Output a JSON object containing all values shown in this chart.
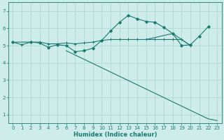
{
  "title": "",
  "xlabel": "Humidex (Indice chaleur)",
  "background_color": "#ceecea",
  "grid_color": "#b0d8d4",
  "line_color": "#1a7a6e",
  "xlim": [
    -0.5,
    23.5
  ],
  "ylim": [
    0.5,
    7.5
  ],
  "yticks": [
    1,
    2,
    3,
    4,
    5,
    6,
    7
  ],
  "xticks": [
    0,
    1,
    2,
    3,
    4,
    5,
    6,
    7,
    8,
    9,
    10,
    11,
    12,
    13,
    14,
    15,
    16,
    17,
    18,
    19,
    20,
    21,
    22,
    23
  ],
  "lines": [
    {
      "x": [
        0,
        1,
        2,
        3,
        4,
        5,
        6,
        7,
        8,
        9,
        10,
        11,
        12,
        13,
        14,
        15,
        16,
        17,
        18,
        19,
        20
      ],
      "y": [
        5.2,
        5.05,
        5.2,
        5.2,
        5.1,
        5.1,
        5.15,
        5.1,
        5.15,
        5.2,
        5.3,
        5.35,
        5.35,
        5.35,
        5.35,
        5.35,
        5.35,
        5.35,
        5.35,
        5.35,
        5.0
      ],
      "marker": true,
      "lw": 0.8
    },
    {
      "x": [
        0,
        2,
        3,
        4,
        5,
        6,
        7,
        8,
        9,
        10,
        11,
        12,
        13,
        14,
        15,
        16,
        17,
        18,
        19,
        20,
        21,
        22
      ],
      "y": [
        5.2,
        5.2,
        5.15,
        4.9,
        5.05,
        5.0,
        4.65,
        4.7,
        4.85,
        5.3,
        5.85,
        6.35,
        6.75,
        6.55,
        6.4,
        6.35,
        6.05,
        5.7,
        5.0,
        5.05,
        5.55,
        6.1
      ],
      "marker": true,
      "lw": 0.8
    },
    {
      "x": [
        6,
        22,
        23
      ],
      "y": [
        4.7,
        0.75,
        0.65
      ],
      "marker": false,
      "lw": 0.8
    },
    {
      "x": [
        15,
        18,
        20
      ],
      "y": [
        5.35,
        5.7,
        5.0
      ],
      "marker": false,
      "lw": 0.8
    }
  ]
}
